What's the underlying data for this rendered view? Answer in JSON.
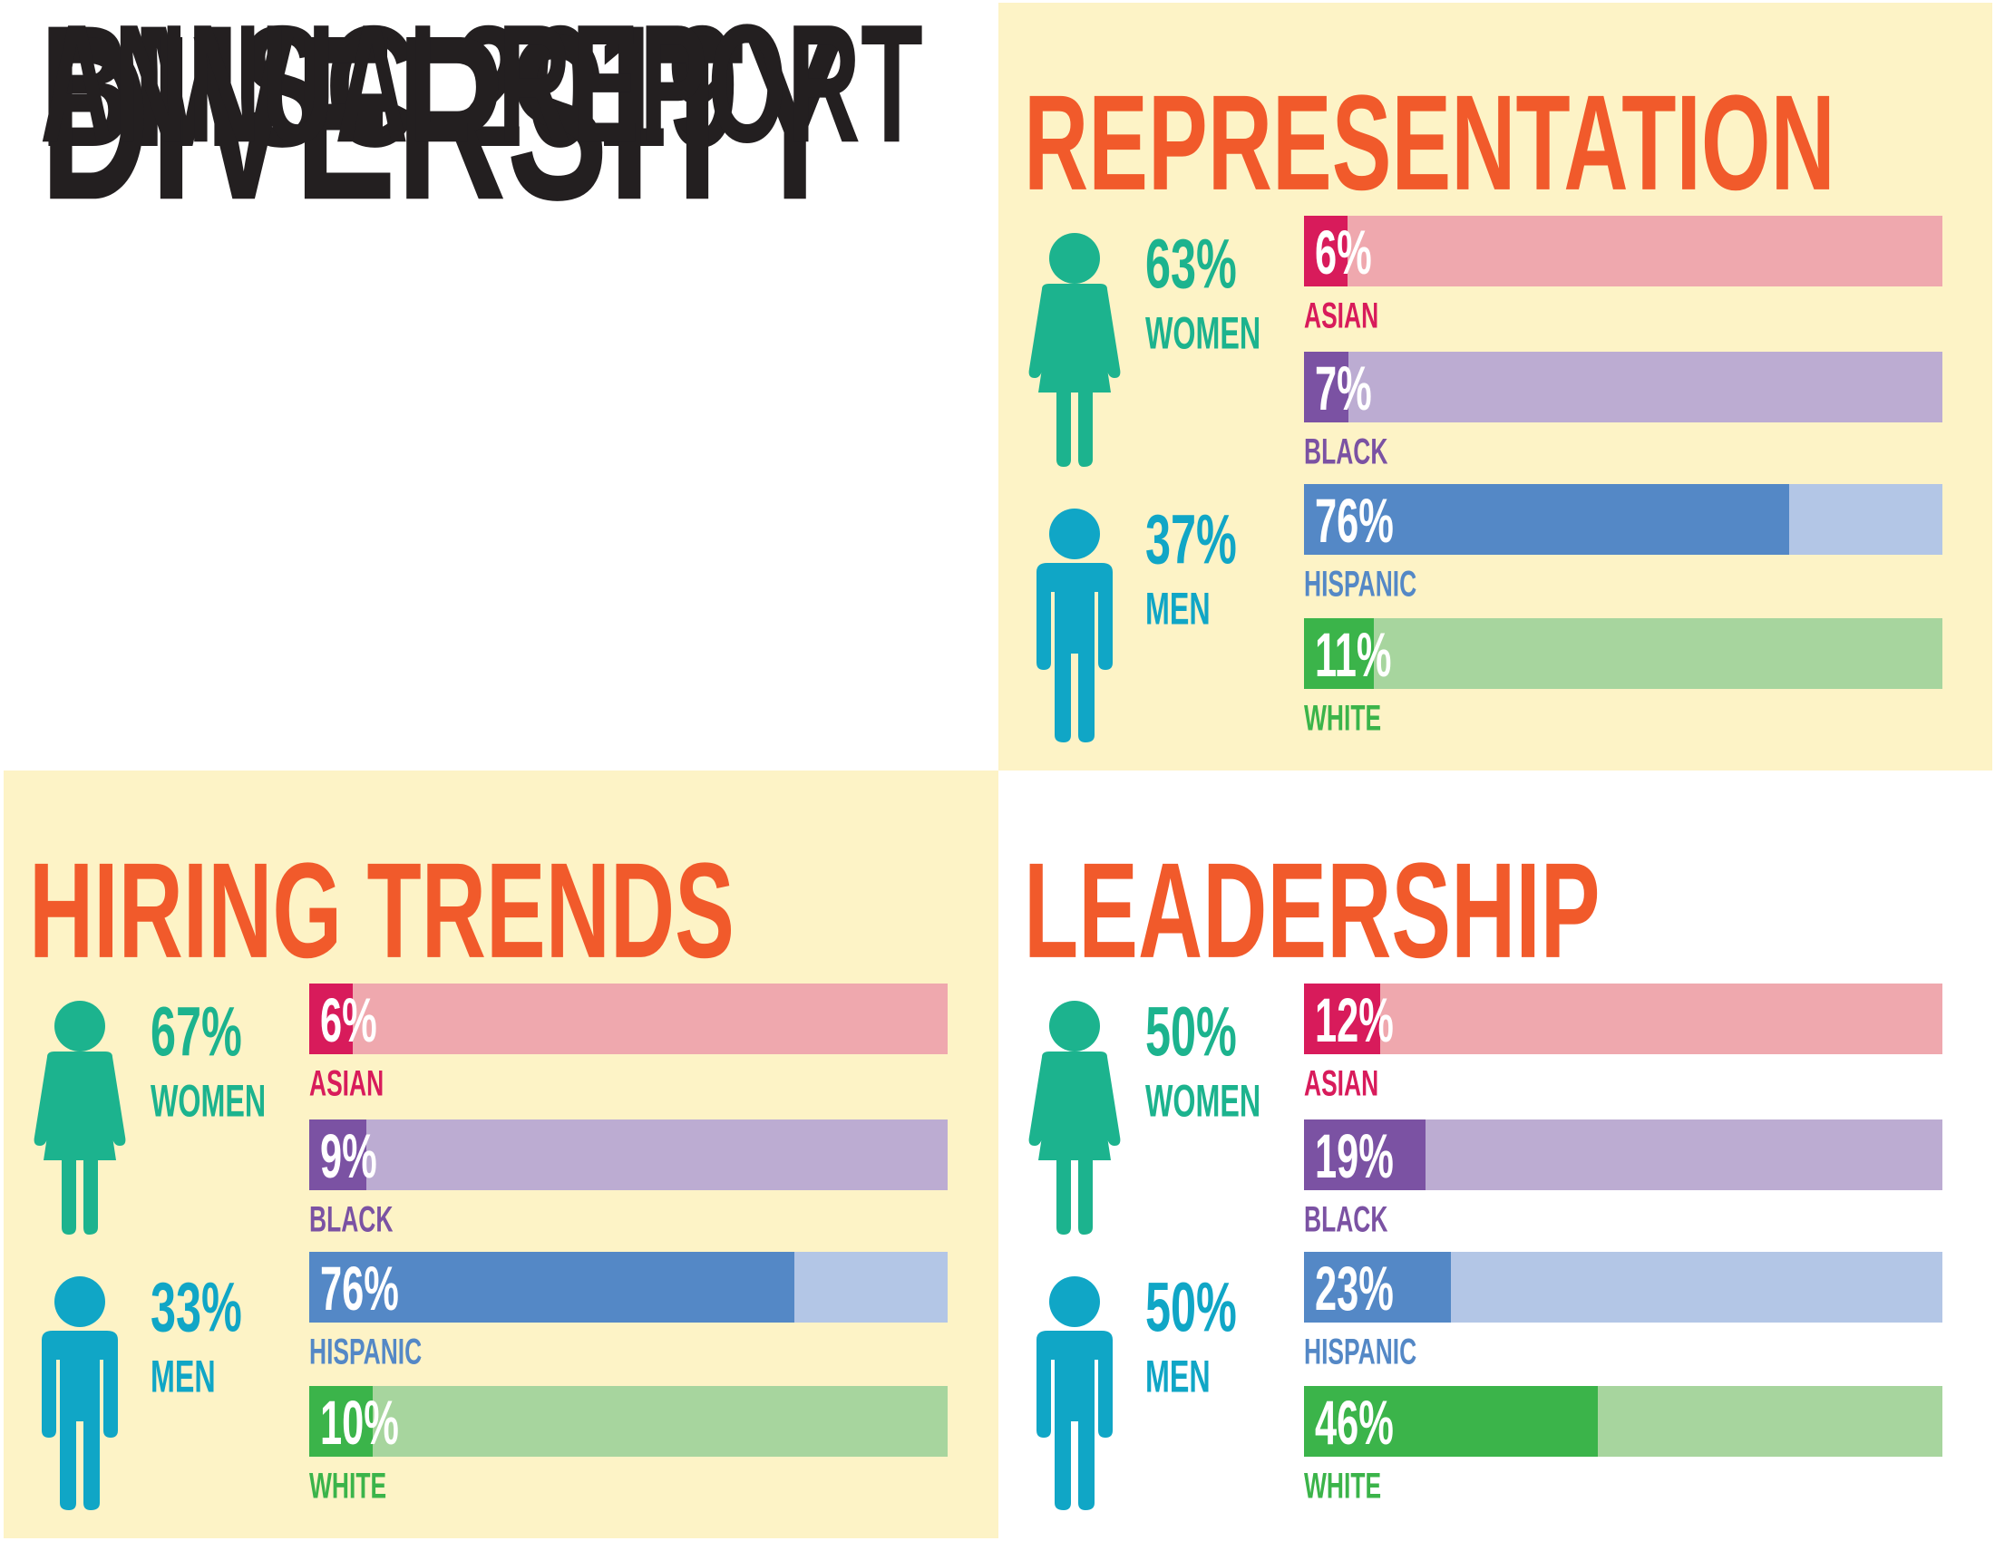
{
  "title": {
    "line1": "BMSC 2019",
    "line2": "DIVERSITY",
    "line3": "ANNUAL REPORT"
  },
  "colors": {
    "background_panel": "#FDF3C6",
    "heading": "#F15A2B",
    "title": "#231F20",
    "women": "#1CB38E",
    "men": "#10A6C6",
    "icon_inactive": "#B0B0B5",
    "asian": {
      "dark": "#D81B5B",
      "light": "#EFA8AE"
    },
    "black": {
      "dark": "#7B52A3",
      "light": "#BCACD2"
    },
    "hispanic": {
      "dark": "#5488C6",
      "light": "#B3C6E6"
    },
    "white": {
      "dark": "#3BB44A",
      "light": "#A7D59E"
    }
  },
  "sections": {
    "representation": {
      "heading": "REPRESENTATION",
      "women": {
        "pct_label": "63%",
        "label": "WOMEN",
        "value": 63
      },
      "men": {
        "pct_label": "37%",
        "label": "MEN",
        "value": 37
      },
      "bars": [
        {
          "label": "ASIAN",
          "pct_label": "6%",
          "value": 6,
          "key": "asian"
        },
        {
          "label": "BLACK",
          "pct_label": "7%",
          "value": 7,
          "key": "black"
        },
        {
          "label": "HISPANIC",
          "pct_label": "76%",
          "value": 76,
          "key": "hispanic"
        },
        {
          "label": "WHITE",
          "pct_label": "11%",
          "value": 11,
          "key": "white"
        }
      ]
    },
    "hiring": {
      "heading": "HIRING TRENDS",
      "women": {
        "pct_label": "67%",
        "label": "WOMEN",
        "value": 67
      },
      "men": {
        "pct_label": "33%",
        "label": "MEN",
        "value": 33
      },
      "bars": [
        {
          "label": "ASIAN",
          "pct_label": "6%",
          "value": 6,
          "key": "asian"
        },
        {
          "label": "BLACK",
          "pct_label": "9%",
          "value": 9,
          "key": "black"
        },
        {
          "label": "HISPANIC",
          "pct_label": "76%",
          "value": 76,
          "key": "hispanic"
        },
        {
          "label": "WHITE",
          "pct_label": "10%",
          "value": 10,
          "key": "white"
        }
      ]
    },
    "leadership": {
      "heading": "LEADERSHIP",
      "women": {
        "pct_label": "50%",
        "label": "WOMEN",
        "value": 50
      },
      "men": {
        "pct_label": "50%",
        "label": "MEN",
        "value": 50
      },
      "bars": [
        {
          "label": "ASIAN",
          "pct_label": "12%",
          "value": 12,
          "key": "asian"
        },
        {
          "label": "BLACK",
          "pct_label": "19%",
          "value": 19,
          "key": "black"
        },
        {
          "label": "HISPANIC",
          "pct_label": "23%",
          "value": 23,
          "key": "hispanic"
        },
        {
          "label": "WHITE",
          "pct_label": "46%",
          "value": 46,
          "key": "white"
        }
      ]
    }
  },
  "chart_data": [
    {
      "type": "bar",
      "title": "REPRESENTATION",
      "orientation": "horizontal",
      "categories": [
        "ASIAN",
        "BLACK",
        "HISPANIC",
        "WHITE"
      ],
      "values": [
        6,
        7,
        76,
        11
      ],
      "xlim": [
        0,
        100
      ],
      "unit": "%",
      "gender": {
        "WOMEN": 63,
        "MEN": 37
      }
    },
    {
      "type": "bar",
      "title": "HIRING TRENDS",
      "orientation": "horizontal",
      "categories": [
        "ASIAN",
        "BLACK",
        "HISPANIC",
        "WHITE"
      ],
      "values": [
        6,
        9,
        76,
        10
      ],
      "xlim": [
        0,
        100
      ],
      "unit": "%",
      "gender": {
        "WOMEN": 67,
        "MEN": 33
      }
    },
    {
      "type": "bar",
      "title": "LEADERSHIP",
      "orientation": "horizontal",
      "categories": [
        "ASIAN",
        "BLACK",
        "HISPANIC",
        "WHITE"
      ],
      "values": [
        12,
        19,
        23,
        46
      ],
      "xlim": [
        0,
        100
      ],
      "unit": "%",
      "gender": {
        "WOMEN": 50,
        "MEN": 50
      }
    }
  ]
}
